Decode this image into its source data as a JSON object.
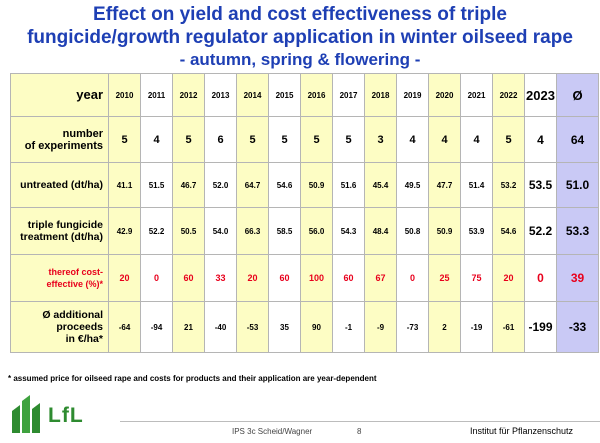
{
  "title": {
    "line1": "Effect on yield and cost effectiveness of triple",
    "line2": "fungicide/growth regulator application in winter oilseed rape",
    "subtitle": "- autumn, spring & flowering -"
  },
  "table": {
    "header_label": "year",
    "years": [
      "2010",
      "2011",
      "2012",
      "2013",
      "2014",
      "2015",
      "2016",
      "2017",
      "2018",
      "2019",
      "2020",
      "2021",
      "2022",
      "2023"
    ],
    "avg_label": "Ø",
    "rows": [
      {
        "label": [
          "number",
          "of experiments"
        ],
        "values": [
          "5",
          "4",
          "5",
          "6",
          "5",
          "5",
          "5",
          "5",
          "3",
          "4",
          "4",
          "4",
          "5",
          "4"
        ],
        "avg": "64"
      },
      {
        "label": [
          "untreated (dt/ha)"
        ],
        "values": [
          "41.1",
          "51.5",
          "46.7",
          "52.0",
          "64.7",
          "54.6",
          "50.9",
          "51.6",
          "45.4",
          "49.5",
          "47.7",
          "51.4",
          "53.2",
          "53.5"
        ],
        "avg": "51.0"
      },
      {
        "label": [
          "triple fungicide",
          "treatment (dt/ha)"
        ],
        "values": [
          "42.9",
          "52.2",
          "50.5",
          "54.0",
          "66.3",
          "58.5",
          "56.0",
          "54.3",
          "48.4",
          "50.8",
          "50.9",
          "53.9",
          "54.6",
          "52.2"
        ],
        "avg": "53.3"
      },
      {
        "label": [
          "thereof cost-",
          "effective (%)*"
        ],
        "values": [
          "20",
          "0",
          "60",
          "33",
          "20",
          "60",
          "100",
          "60",
          "67",
          "0",
          "25",
          "75",
          "20",
          "0"
        ],
        "avg": "39"
      },
      {
        "label": [
          "Ø additional",
          "proceeds",
          "in €/ha*"
        ],
        "values": [
          "-64",
          "-94",
          "21",
          "-40",
          "-53",
          "35",
          "90",
          "-1",
          "-9",
          "-73",
          "2",
          "-19",
          "-61",
          "-199"
        ],
        "avg": "-33"
      }
    ]
  },
  "footnote": "* assumed price for oilseed rape and costs for products and their application are year-dependent",
  "logo_text": "LfL",
  "footer": {
    "author": "IPS 3c Scheid/Wagner",
    "page": "8",
    "institute": "Institut für Pflanzenschutz"
  },
  "colors": {
    "title": "#1e3fb4",
    "yellow_col": "#fdfdc4",
    "avg_col": "#c9c9f5",
    "cost_text": "#e8001c",
    "logo_green": "#2e8b30"
  }
}
